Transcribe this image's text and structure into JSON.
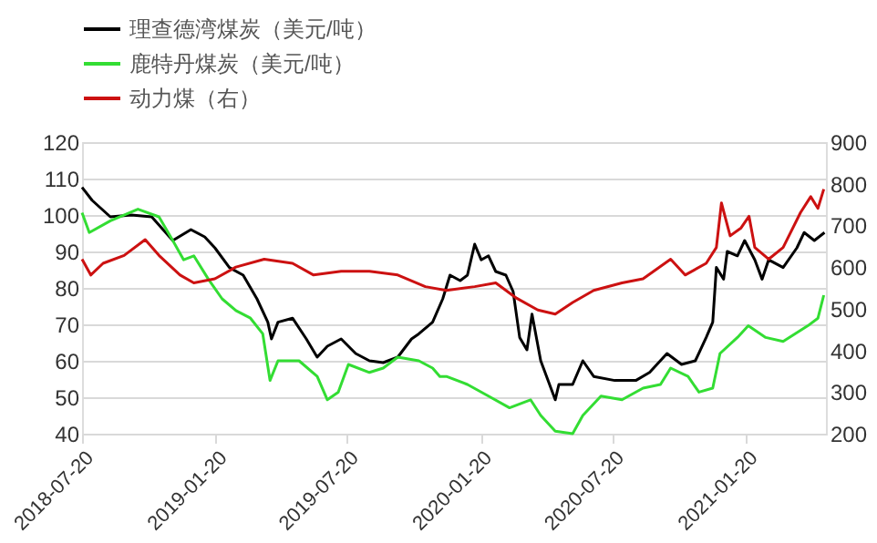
{
  "chart_data": {
    "type": "line",
    "legend": "top",
    "grid": "y",
    "marker": "none",
    "line_style": "solid",
    "xlim": [
      "2018-07-20",
      "2021-05-10"
    ],
    "xticks": [
      "2018-07-20",
      "2019-01-20",
      "2019-07-20",
      "2020-01-20",
      "2020-07-20",
      "2021-01-20"
    ],
    "ylim": [
      40,
      120
    ],
    "yticks": [
      40,
      50,
      60,
      70,
      80,
      90,
      100,
      110,
      120
    ],
    "y2lim": [
      200,
      900
    ],
    "y2ticks": [
      200,
      300,
      400,
      500,
      600,
      700,
      800,
      900
    ],
    "series": [
      {
        "name": "理查德湾煤炭（美元/吨）",
        "color": "#000000",
        "x": [
          "2018-07-20",
          "2018-08-03",
          "2018-08-28",
          "2018-09-26",
          "2018-10-24",
          "2018-11-22",
          "2018-12-17",
          "2019-01-05",
          "2019-01-19",
          "2019-02-08",
          "2019-02-27",
          "2019-03-18",
          "2019-04-02",
          "2019-04-07",
          "2019-04-16",
          "2019-05-06",
          "2019-05-25",
          "2019-06-09",
          "2019-06-23",
          "2019-07-12",
          "2019-08-01",
          "2019-08-20",
          "2019-09-08",
          "2019-09-28",
          "2019-10-17",
          "2019-10-27",
          "2019-11-15",
          "2019-11-29",
          "2019-12-09",
          "2019-12-23",
          "2020-01-02",
          "2020-01-12",
          "2020-01-21",
          "2020-01-31",
          "2020-02-10",
          "2020-02-24",
          "2020-03-05",
          "2020-03-14",
          "2020-03-24",
          "2020-03-31",
          "2020-04-12",
          "2020-05-02",
          "2020-05-07",
          "2020-05-26",
          "2020-06-09",
          "2020-06-24",
          "2020-07-23",
          "2020-08-21",
          "2020-09-09",
          "2020-10-03",
          "2020-10-23",
          "2020-11-11",
          "2020-11-26",
          "2020-12-05",
          "2020-12-10",
          "2020-12-20",
          "2020-12-25",
          "2021-01-08",
          "2021-01-18",
          "2021-02-01",
          "2021-02-11",
          "2021-02-20",
          "2021-03-12",
          "2021-03-31",
          "2021-04-10",
          "2021-04-24",
          "2021-05-08"
        ],
        "values": [
          107.6,
          104,
          99.5,
          100,
          99.5,
          93,
          96,
          94,
          91,
          85.6,
          83.5,
          77,
          70.6,
          66,
          70.6,
          71.7,
          66,
          61,
          64,
          66,
          62,
          60,
          59.5,
          61,
          66,
          67.4,
          70.6,
          77,
          83.5,
          82,
          83.5,
          92,
          87.7,
          88.8,
          84.5,
          83.5,
          79,
          66.4,
          63,
          72.8,
          60,
          49.3,
          53.5,
          53.5,
          60,
          55.7,
          54.6,
          54.6,
          56.8,
          62,
          59,
          60,
          66.4,
          70.6,
          85.6,
          82.4,
          90,
          88.8,
          93,
          87.7,
          82.4,
          87.7,
          85.6,
          91,
          95.2,
          93,
          95.2
        ]
      },
      {
        "name": "鹿特丹煤炭（美元/吨）",
        "color": "#33dd33",
        "x": [
          "2018-07-20",
          "2018-07-30",
          "2018-08-28",
          "2018-10-05",
          "2018-11-03",
          "2018-11-22",
          "2018-12-07",
          "2018-12-21",
          "2019-01-10",
          "2019-01-29",
          "2019-02-17",
          "2019-03-09",
          "2019-03-26",
          "2019-04-05",
          "2019-04-16",
          "2019-05-15",
          "2019-06-09",
          "2019-06-23",
          "2019-07-08",
          "2019-07-22",
          "2019-08-20",
          "2019-09-08",
          "2019-09-28",
          "2019-10-27",
          "2019-11-15",
          "2019-11-25",
          "2019-12-04",
          "2020-01-02",
          "2020-01-31",
          "2020-02-29",
          "2020-03-29",
          "2020-04-12",
          "2020-05-02",
          "2020-05-26",
          "2020-06-09",
          "2020-07-04",
          "2020-08-02",
          "2020-08-31",
          "2020-09-24",
          "2020-10-08",
          "2020-11-01",
          "2020-11-16",
          "2020-12-05",
          "2020-12-15",
          "2021-01-08",
          "2021-01-23",
          "2021-02-16",
          "2021-03-12",
          "2021-04-15",
          "2021-04-29",
          "2021-05-07"
        ],
        "values": [
          100.6,
          95.2,
          98.4,
          101.6,
          99.5,
          93,
          87.7,
          88.8,
          82.4,
          77,
          73.8,
          71.7,
          67.4,
          54.6,
          60,
          60,
          55.7,
          49.3,
          51.4,
          59,
          56.8,
          58,
          61,
          60,
          58,
          55.7,
          55.7,
          53.5,
          50.3,
          47.1,
          49.3,
          45,
          40.7,
          40,
          45,
          50.3,
          49.3,
          52.5,
          53.5,
          58,
          55.7,
          51.4,
          52.5,
          62,
          66.4,
          69.6,
          66.4,
          65.3,
          69.6,
          71.7,
          78
        ]
      },
      {
        "name": "动力煤（右）",
        "color": "#cc1111",
        "axis": "y2",
        "x": [
          "2018-07-20",
          "2018-08-01",
          "2018-08-18",
          "2018-09-16",
          "2018-10-15",
          "2018-11-03",
          "2018-12-02",
          "2018-12-21",
          "2019-01-19",
          "2019-02-17",
          "2019-03-28",
          "2019-05-06",
          "2019-06-04",
          "2019-07-12",
          "2019-08-20",
          "2019-09-28",
          "2019-11-05",
          "2019-12-04",
          "2020-01-12",
          "2020-02-10",
          "2020-03-10",
          "2020-04-08",
          "2020-05-02",
          "2020-05-26",
          "2020-06-24",
          "2020-08-02",
          "2020-08-31",
          "2020-10-08",
          "2020-10-28",
          "2020-11-26",
          "2020-12-10",
          "2020-12-17",
          "2020-12-29",
          "2021-01-13",
          "2021-01-24",
          "2021-02-01",
          "2021-02-20",
          "2021-03-12",
          "2021-04-05",
          "2021-04-19",
          "2021-04-29",
          "2021-05-07"
        ],
        "values": [
          619,
          581,
          609,
          628,
          666,
          628,
          581,
          562,
          572,
          600,
          619,
          609,
          581,
          590,
          590,
          581,
          553,
          544,
          553,
          562,
          525,
          497,
          487,
          515,
          544,
          562,
          572,
          619,
          581,
          609,
          647,
          754,
          675,
          694,
          722,
          647,
          619,
          647,
          731,
          769,
          741,
          787
        ]
      }
    ]
  }
}
